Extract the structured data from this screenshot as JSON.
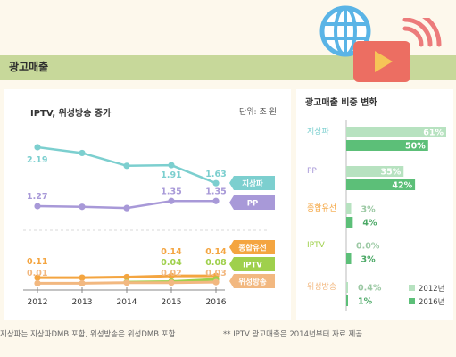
{
  "header": {
    "title": "광고매출"
  },
  "left_chart": {
    "title": "IPTV, 위성방송 증가",
    "unit": "단위: 조 원"
  },
  "right_chart": {
    "title": "광고매출 비중 변화"
  },
  "footnotes": {
    "note1": "지상파는 지상파DMB 포함, 위성방송은 위성DMB 포함",
    "note2": "** IPTV 광고매출은 2014년부터 자료 제공"
  },
  "colors": {
    "jisangpa": "#7ccfcf",
    "pp": "#a899d8",
    "jonghap": "#f4a540",
    "iptv": "#9fd04c",
    "wiseong": "#f2b880",
    "bar2012": "#b7e2c0",
    "bar2016": "#5cbf78"
  },
  "chart_data": [
    {
      "type": "line",
      "title": "IPTV, 위성방송 증가",
      "x": [
        2012,
        2013,
        2014,
        2015,
        2016
      ],
      "series": [
        {
          "name": "지상파",
          "values": [
            2.19,
            2.1,
            1.9,
            1.91,
            1.63
          ],
          "labels": [
            "2.19",
            "",
            "",
            "1.91",
            "1.63"
          ]
        },
        {
          "name": "PP",
          "values": [
            1.27,
            1.26,
            1.24,
            1.35,
            1.35
          ],
          "labels": [
            "1.27",
            "",
            "",
            "1.35",
            "1.35"
          ]
        },
        {
          "name": "종합유선",
          "values": [
            0.11,
            0.11,
            0.12,
            0.14,
            0.14
          ],
          "labels": [
            "0.11",
            "",
            "",
            "0.14",
            "0.14"
          ]
        },
        {
          "name": "IPTV",
          "values": [
            null,
            null,
            0.03,
            0.04,
            0.08
          ],
          "labels": [
            "",
            "",
            "",
            "0.04",
            "0.08"
          ]
        },
        {
          "name": "위성방송",
          "values": [
            0.01,
            0.01,
            0.02,
            0.02,
            0.03
          ],
          "labels": [
            "0.01",
            "",
            "",
            "0.02",
            "0.03"
          ]
        }
      ]
    },
    {
      "type": "bar",
      "title": "광고매출 비중 변화",
      "categories": [
        "지상파",
        "PP",
        "종합유선",
        "IPTV",
        "위성방송"
      ],
      "series": [
        {
          "name": "2012년",
          "values": [
            61,
            35,
            3,
            0.0,
            0.4
          ],
          "labels": [
            "61%",
            "35%",
            "3%",
            "0.0%",
            "0.4%"
          ]
        },
        {
          "name": "2016년",
          "values": [
            50,
            42,
            4,
            3,
            1
          ],
          "labels": [
            "50%",
            "42%",
            "4%",
            "3%",
            "1%"
          ]
        }
      ],
      "legend": "bottom-right"
    }
  ]
}
